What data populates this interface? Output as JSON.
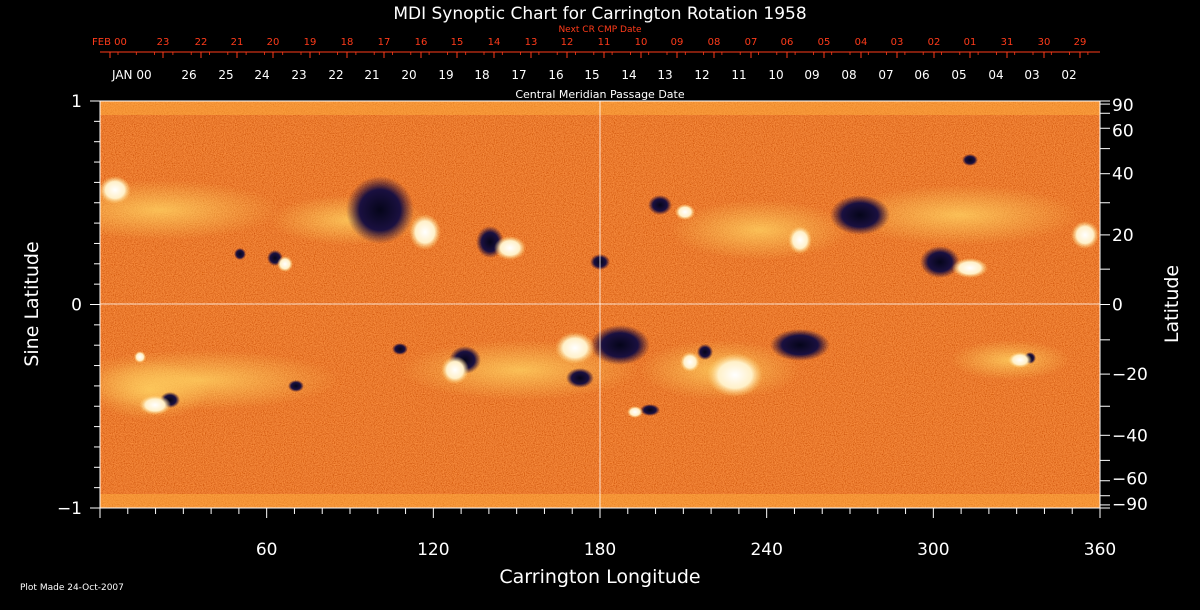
{
  "title": "MDI Synoptic Chart for Carrington Rotation 1958",
  "next_cr_label": "Next CR CMP Date",
  "cmp_label": "Central Meridian Passage Date",
  "top_dates": [
    "FEB 00",
    "23",
    "22",
    "21",
    "20",
    "19",
    "18",
    "17",
    "16",
    "15",
    "14",
    "13",
    "12",
    "11",
    "10",
    "09",
    "08",
    "07",
    "06",
    "05",
    "04",
    "03",
    "02",
    "01",
    "31",
    "30",
    "29"
  ],
  "bottom_dates": [
    "JAN 00",
    "26",
    "25",
    "24",
    "23",
    "22",
    "21",
    "20",
    "19",
    "18",
    "17",
    "16",
    "15",
    "14",
    "13",
    "12",
    "11",
    "10",
    "09",
    "08",
    "07",
    "06",
    "05",
    "04",
    "03",
    "02"
  ],
  "xlabel": "Carrington Longitude",
  "x_ticks": [
    "60",
    "120",
    "180",
    "240",
    "300",
    "360"
  ],
  "ylabel_left": "Sine Latitude",
  "y_ticks_left": [
    "1",
    "0",
    "−1"
  ],
  "ylabel_right": "Latitude",
  "y_ticks_right": [
    "90",
    "60",
    "40",
    "20",
    "0",
    "−20",
    "−40",
    "−60",
    "−90"
  ],
  "footer": "Plot Made 24-Oct-2007",
  "colors": {
    "background": "#000000",
    "map_base": "#ff5a1a",
    "top_date_color": "#ff3b1a",
    "text": "#ffffff"
  }
}
